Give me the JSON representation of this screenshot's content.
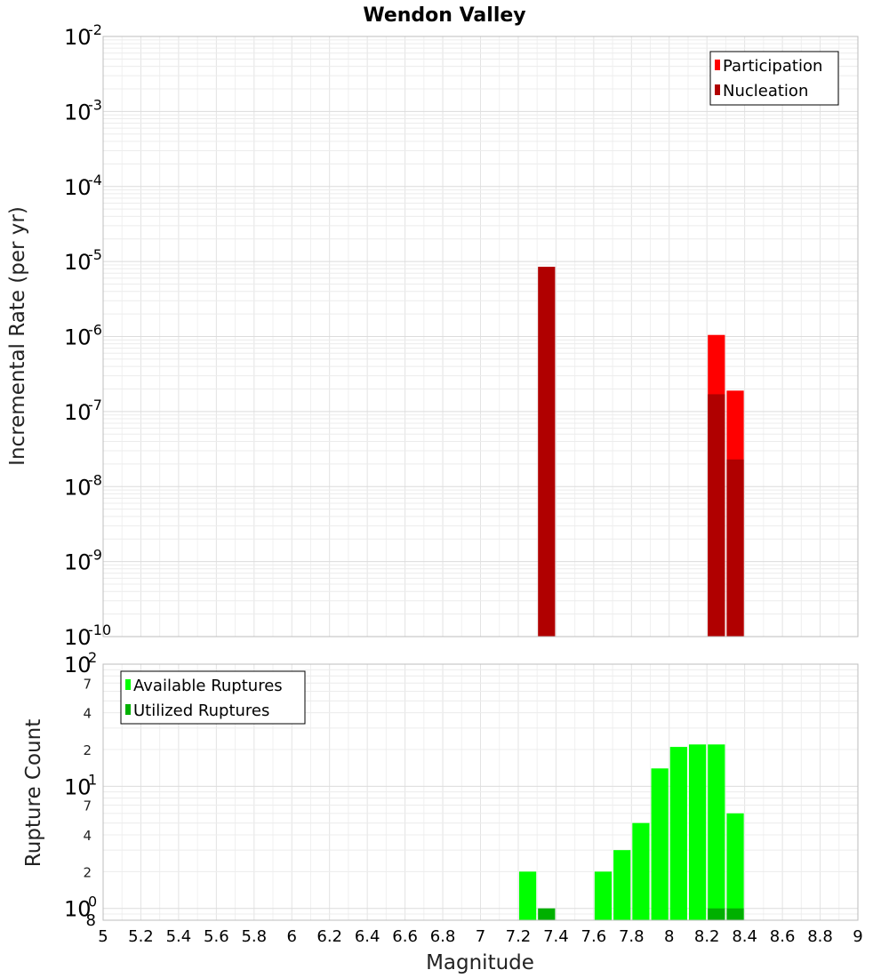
{
  "chart_data": [
    {
      "type": "bar",
      "title": "Wendon Valley",
      "ylabel": "Incremental Rate (per yr)",
      "xlabel": "",
      "xlim": [
        5,
        9
      ],
      "ylim": [
        1e-10,
        0.01
      ],
      "yscale": "log",
      "y_tick_labels": [
        {
          "base": "10",
          "exp": "-2"
        },
        {
          "base": "10",
          "exp": "-3"
        },
        {
          "base": "10",
          "exp": "-4"
        },
        {
          "base": "10",
          "exp": "-5"
        },
        {
          "base": "10",
          "exp": "-6"
        },
        {
          "base": "10",
          "exp": "-7"
        },
        {
          "base": "10",
          "exp": "-8"
        },
        {
          "base": "10",
          "exp": "-9"
        },
        {
          "base": "10",
          "exp": "-10"
        }
      ],
      "legend_position": "top-right",
      "grid": true,
      "series": [
        {
          "name": "Participation",
          "color": "#ff0000",
          "x": [
            8.25,
            8.35
          ],
          "values": [
            1.05e-06,
            1.9e-07
          ]
        },
        {
          "name": "Nucleation",
          "color": "#b00000",
          "x": [
            7.35,
            8.25,
            8.35
          ],
          "values": [
            8.5e-06,
            1.7e-07,
            2.3e-08
          ]
        }
      ]
    },
    {
      "type": "bar",
      "title": "",
      "ylabel": "Rupture Count",
      "xlabel": "Magnitude",
      "xlim": [
        5,
        9
      ],
      "ylim": [
        0.8,
        100
      ],
      "yscale": "log",
      "x_ticks": [
        "5",
        "5.2",
        "5.4",
        "5.6",
        "5.8",
        "6",
        "6.2",
        "6.4",
        "6.6",
        "6.8",
        "7",
        "7.2",
        "7.4",
        "7.6",
        "7.8",
        "8",
        "8.2",
        "8.4",
        "8.6",
        "8.8",
        "9"
      ],
      "y_major_labels": [
        {
          "base": "10",
          "exp": "2"
        },
        {
          "base": "10",
          "exp": "1"
        },
        {
          "base": "10",
          "exp": "0"
        }
      ],
      "y_minor_labels": [
        "7",
        "4",
        "2",
        "7",
        "4",
        "2",
        "8"
      ],
      "legend_position": "top-left",
      "grid": true,
      "series": [
        {
          "name": "Available Ruptures",
          "color": "#00ff00",
          "x": [
            7.25,
            7.65,
            7.75,
            7.85,
            7.95,
            8.05,
            8.15,
            8.25,
            8.35
          ],
          "values": [
            2,
            2,
            3,
            5,
            14,
            21,
            22,
            22,
            6
          ]
        },
        {
          "name": "Utilized Ruptures",
          "color": "#00b000",
          "x": [
            7.35,
            8.25,
            8.35
          ],
          "values": [
            1,
            1,
            1
          ]
        }
      ]
    }
  ]
}
